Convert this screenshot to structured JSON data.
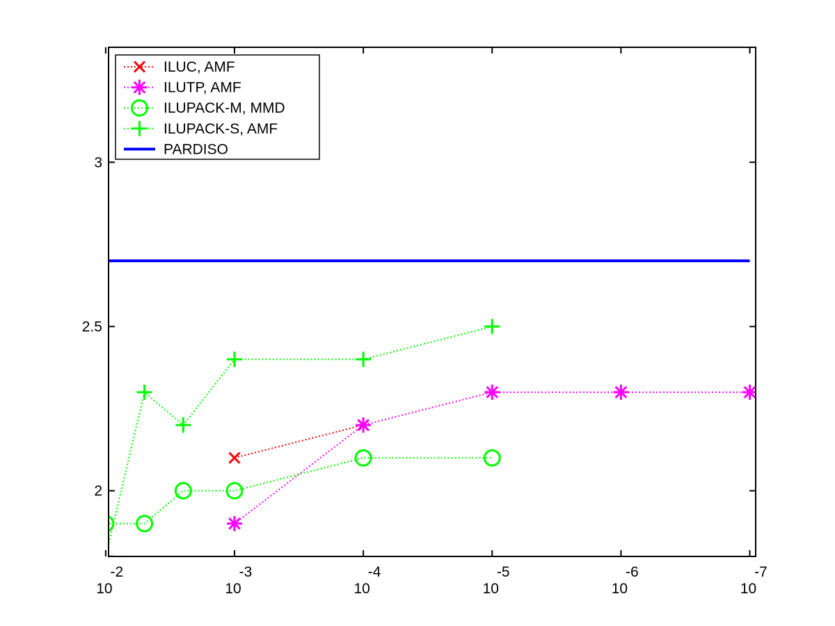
{
  "chart_data": {
    "type": "line",
    "title": "",
    "xlabel": "",
    "ylabel": "",
    "x_scale": "log10-reversed",
    "xlim": [
      0.0095,
      9e-08
    ],
    "ylim": [
      1.8,
      3.35
    ],
    "grid": false,
    "legend_position": "top-left",
    "x_ticks": [
      {
        "value": 0.01,
        "base": "10",
        "exp": "-2"
      },
      {
        "value": 0.001,
        "base": "10",
        "exp": "-3"
      },
      {
        "value": 0.0001,
        "base": "10",
        "exp": "-4"
      },
      {
        "value": 1e-05,
        "base": "10",
        "exp": "-5"
      },
      {
        "value": 1e-06,
        "base": "10",
        "exp": "-6"
      },
      {
        "value": 1e-07,
        "base": "10",
        "exp": "-7"
      }
    ],
    "y_ticks": [
      {
        "value": 2,
        "label": "2"
      },
      {
        "value": 2.5,
        "label": "2.5"
      },
      {
        "value": 3,
        "label": "3"
      }
    ],
    "series": [
      {
        "name": "ILUC, AMF",
        "color": "#ff0000",
        "marker": "x",
        "linestyle": "dotted",
        "x": [
          0.001,
          0.0001
        ],
        "y": [
          2.1,
          2.2
        ]
      },
      {
        "name": "ILUTP, AMF",
        "color": "#ff00ff",
        "marker": "asterisk",
        "linestyle": "dotted",
        "x": [
          0.001,
          0.0001,
          1e-05,
          1e-06,
          1e-07
        ],
        "y": [
          1.9,
          2.2,
          2.3,
          2.3,
          2.3
        ]
      },
      {
        "name": "ILUPACK-M, MMD",
        "color": "#00ff00",
        "marker": "circle",
        "linestyle": "dotted",
        "x": [
          0.01,
          0.005,
          0.0025,
          0.001,
          0.0001,
          1e-05
        ],
        "y": [
          1.9,
          1.9,
          2.0,
          2.0,
          2.1,
          2.1
        ]
      },
      {
        "name": "ILUPACK-S, AMF",
        "color": "#00ff00",
        "marker": "plus",
        "linestyle": "dotted",
        "x": [
          0.01,
          0.005,
          0.0025,
          0.001,
          0.0001,
          1e-05
        ],
        "y": [
          1.8,
          2.3,
          2.2,
          2.4,
          2.4,
          2.5
        ]
      },
      {
        "name": "PARDISO",
        "color": "#0000ff",
        "marker": "none",
        "linestyle": "solid",
        "x": [
          0.01,
          1e-07
        ],
        "y": [
          2.7,
          2.7
        ]
      }
    ]
  }
}
